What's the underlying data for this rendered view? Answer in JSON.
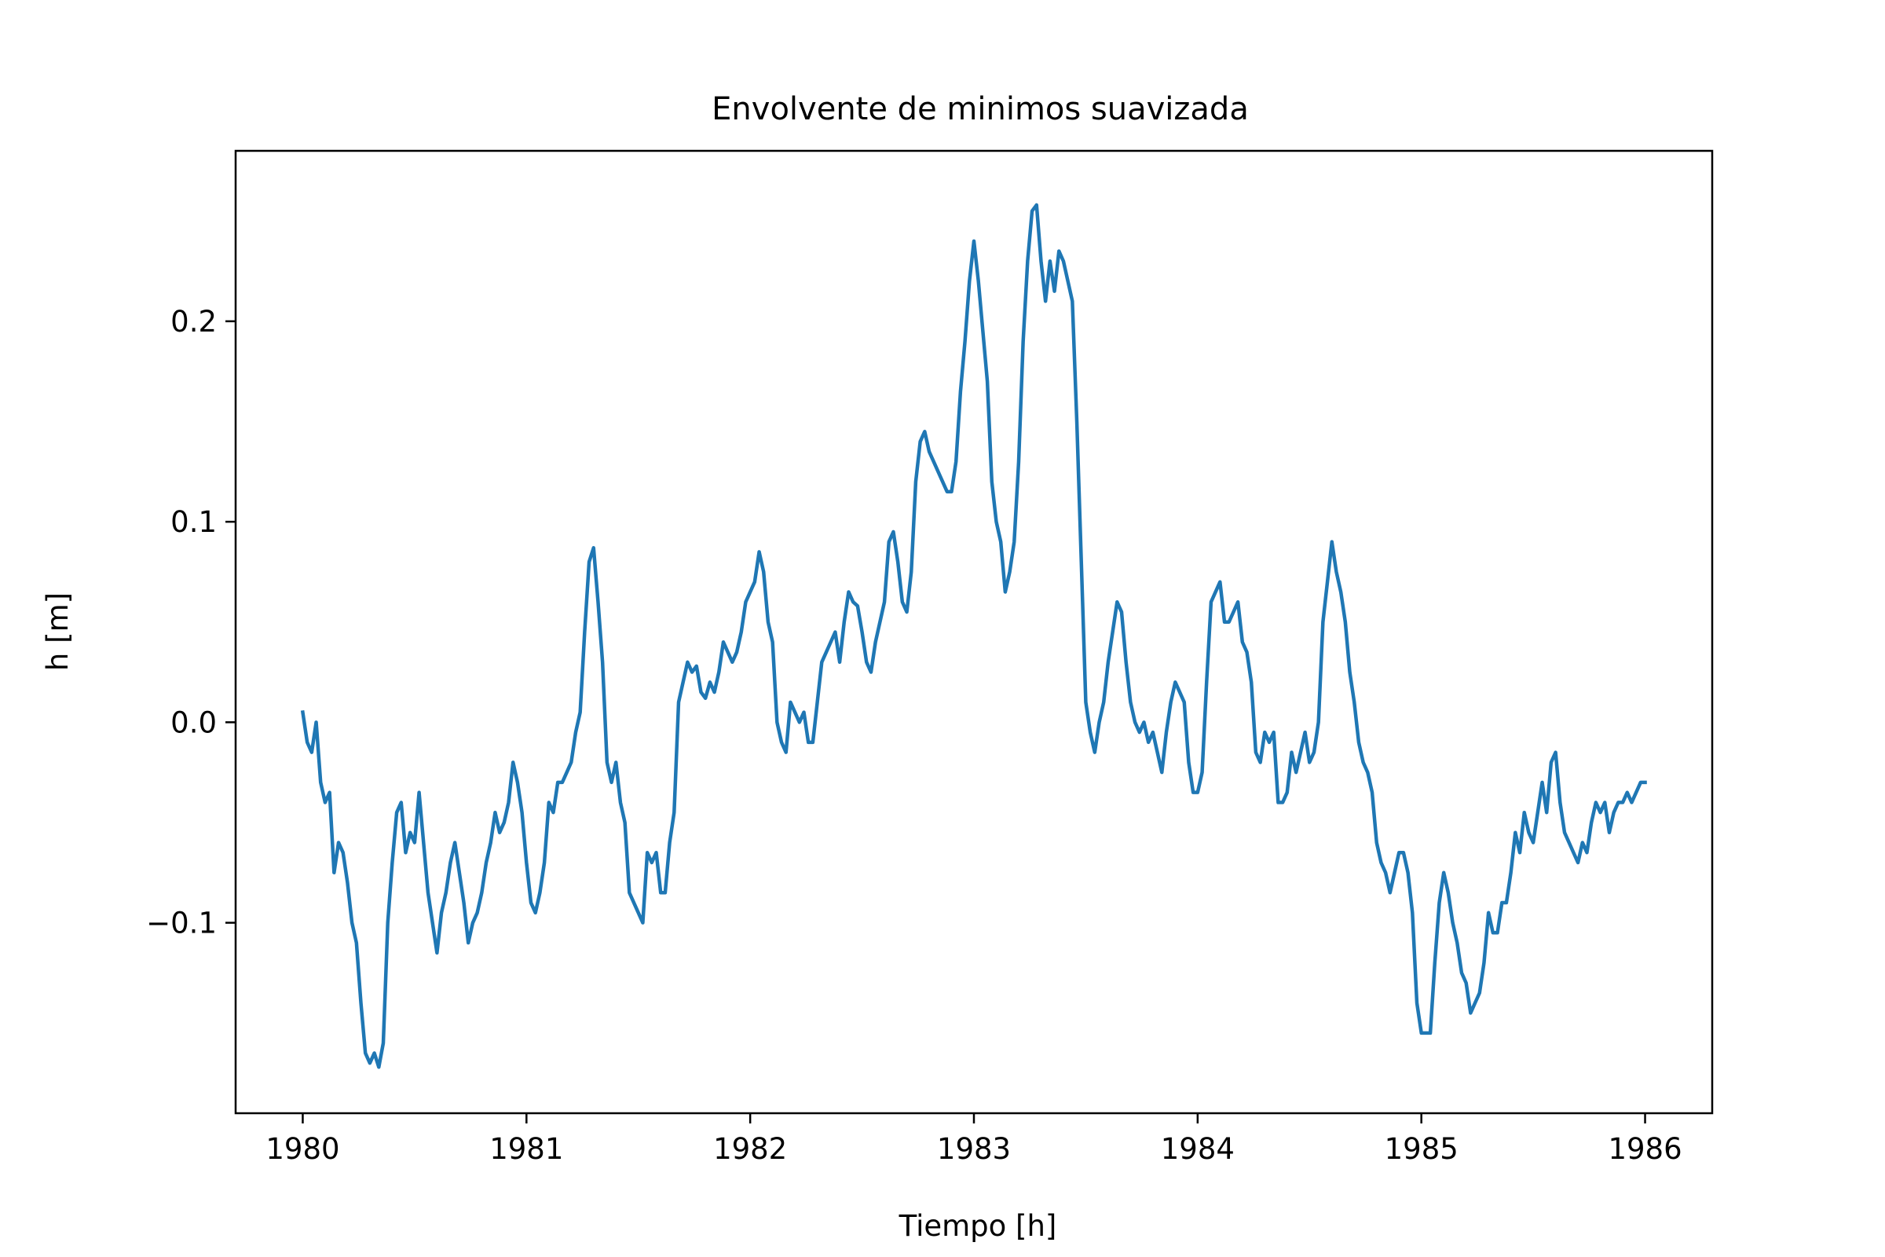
{
  "chart_data": {
    "type": "line",
    "title": "Envolvente de minimos suavizada",
    "xlabel": "Tiempo [h]",
    "ylabel": "h [m]",
    "xlim": [
      1979.7,
      1986.3
    ],
    "ylim": [
      -0.195,
      0.285
    ],
    "xticks": [
      1980,
      1981,
      1982,
      1983,
      1984,
      1985,
      1986
    ],
    "xtick_labels": [
      "1980",
      "1981",
      "1982",
      "1983",
      "1984",
      "1985",
      "1986"
    ],
    "yticks": [
      -0.1,
      0.0,
      0.1,
      0.2
    ],
    "ytick_labels": [
      "−0.1",
      "0.0",
      "0.1",
      "0.2"
    ],
    "grid": false,
    "line_color": "#1f77b4",
    "series": [
      {
        "points": [
          [
            1980.0,
            0.005
          ],
          [
            1980.02,
            -0.01
          ],
          [
            1980.04,
            -0.015
          ],
          [
            1980.06,
            0.0
          ],
          [
            1980.08,
            -0.03
          ],
          [
            1980.1,
            -0.04
          ],
          [
            1980.12,
            -0.035
          ],
          [
            1980.14,
            -0.075
          ],
          [
            1980.16,
            -0.06
          ],
          [
            1980.18,
            -0.065
          ],
          [
            1980.2,
            -0.08
          ],
          [
            1980.22,
            -0.1
          ],
          [
            1980.24,
            -0.11
          ],
          [
            1980.26,
            -0.14
          ],
          [
            1980.28,
            -0.165
          ],
          [
            1980.3,
            -0.17
          ],
          [
            1980.32,
            -0.165
          ],
          [
            1980.34,
            -0.172
          ],
          [
            1980.36,
            -0.16
          ],
          [
            1980.38,
            -0.1
          ],
          [
            1980.4,
            -0.07
          ],
          [
            1980.42,
            -0.045
          ],
          [
            1980.44,
            -0.04
          ],
          [
            1980.46,
            -0.065
          ],
          [
            1980.48,
            -0.055
          ],
          [
            1980.5,
            -0.06
          ],
          [
            1980.52,
            -0.035
          ],
          [
            1980.54,
            -0.06
          ],
          [
            1980.56,
            -0.085
          ],
          [
            1980.58,
            -0.1
          ],
          [
            1980.6,
            -0.115
          ],
          [
            1980.62,
            -0.095
          ],
          [
            1980.64,
            -0.085
          ],
          [
            1980.66,
            -0.07
          ],
          [
            1980.68,
            -0.06
          ],
          [
            1980.7,
            -0.075
          ],
          [
            1980.72,
            -0.09
          ],
          [
            1980.74,
            -0.11
          ],
          [
            1980.76,
            -0.1
          ],
          [
            1980.78,
            -0.095
          ],
          [
            1980.8,
            -0.085
          ],
          [
            1980.82,
            -0.07
          ],
          [
            1980.84,
            -0.06
          ],
          [
            1980.86,
            -0.045
          ],
          [
            1980.88,
            -0.055
          ],
          [
            1980.9,
            -0.05
          ],
          [
            1980.92,
            -0.04
          ],
          [
            1980.94,
            -0.02
          ],
          [
            1980.96,
            -0.03
          ],
          [
            1980.98,
            -0.045
          ],
          [
            1981.0,
            -0.07
          ],
          [
            1981.02,
            -0.09
          ],
          [
            1981.04,
            -0.095
          ],
          [
            1981.06,
            -0.085
          ],
          [
            1981.08,
            -0.07
          ],
          [
            1981.1,
            -0.04
          ],
          [
            1981.12,
            -0.045
          ],
          [
            1981.14,
            -0.03
          ],
          [
            1981.16,
            -0.03
          ],
          [
            1981.18,
            -0.025
          ],
          [
            1981.2,
            -0.02
          ],
          [
            1981.22,
            -0.005
          ],
          [
            1981.24,
            0.005
          ],
          [
            1981.26,
            0.045
          ],
          [
            1981.28,
            0.08
          ],
          [
            1981.3,
            0.087
          ],
          [
            1981.32,
            0.06
          ],
          [
            1981.34,
            0.03
          ],
          [
            1981.36,
            -0.02
          ],
          [
            1981.38,
            -0.03
          ],
          [
            1981.4,
            -0.02
          ],
          [
            1981.42,
            -0.04
          ],
          [
            1981.44,
            -0.05
          ],
          [
            1981.46,
            -0.085
          ],
          [
            1981.48,
            -0.09
          ],
          [
            1981.5,
            -0.095
          ],
          [
            1981.52,
            -0.1
          ],
          [
            1981.54,
            -0.065
          ],
          [
            1981.56,
            -0.07
          ],
          [
            1981.58,
            -0.065
          ],
          [
            1981.6,
            -0.085
          ],
          [
            1981.62,
            -0.085
          ],
          [
            1981.64,
            -0.06
          ],
          [
            1981.66,
            -0.045
          ],
          [
            1981.68,
            0.01
          ],
          [
            1981.7,
            0.02
          ],
          [
            1981.72,
            0.03
          ],
          [
            1981.74,
            0.025
          ],
          [
            1981.76,
            0.028
          ],
          [
            1981.78,
            0.015
          ],
          [
            1981.8,
            0.012
          ],
          [
            1981.82,
            0.02
          ],
          [
            1981.84,
            0.015
          ],
          [
            1981.86,
            0.025
          ],
          [
            1981.88,
            0.04
          ],
          [
            1981.9,
            0.035
          ],
          [
            1981.92,
            0.03
          ],
          [
            1981.94,
            0.035
          ],
          [
            1981.96,
            0.045
          ],
          [
            1981.98,
            0.06
          ],
          [
            1982.0,
            0.065
          ],
          [
            1982.02,
            0.07
          ],
          [
            1982.04,
            0.085
          ],
          [
            1982.06,
            0.075
          ],
          [
            1982.08,
            0.05
          ],
          [
            1982.1,
            0.04
          ],
          [
            1982.12,
            0.0
          ],
          [
            1982.14,
            -0.01
          ],
          [
            1982.16,
            -0.015
          ],
          [
            1982.18,
            0.01
          ],
          [
            1982.2,
            0.005
          ],
          [
            1982.22,
            0.0
          ],
          [
            1982.24,
            0.005
          ],
          [
            1982.26,
            -0.01
          ],
          [
            1982.28,
            -0.01
          ],
          [
            1982.3,
            0.01
          ],
          [
            1982.32,
            0.03
          ],
          [
            1982.34,
            0.035
          ],
          [
            1982.36,
            0.04
          ],
          [
            1982.38,
            0.045
          ],
          [
            1982.4,
            0.03
          ],
          [
            1982.42,
            0.05
          ],
          [
            1982.44,
            0.065
          ],
          [
            1982.46,
            0.06
          ],
          [
            1982.48,
            0.058
          ],
          [
            1982.5,
            0.045
          ],
          [
            1982.52,
            0.03
          ],
          [
            1982.54,
            0.025
          ],
          [
            1982.56,
            0.04
          ],
          [
            1982.58,
            0.05
          ],
          [
            1982.6,
            0.06
          ],
          [
            1982.62,
            0.09
          ],
          [
            1982.64,
            0.095
          ],
          [
            1982.66,
            0.08
          ],
          [
            1982.68,
            0.06
          ],
          [
            1982.7,
            0.055
          ],
          [
            1982.72,
            0.075
          ],
          [
            1982.74,
            0.12
          ],
          [
            1982.76,
            0.14
          ],
          [
            1982.78,
            0.145
          ],
          [
            1982.8,
            0.135
          ],
          [
            1982.82,
            0.13
          ],
          [
            1982.84,
            0.125
          ],
          [
            1982.86,
            0.12
          ],
          [
            1982.88,
            0.115
          ],
          [
            1982.9,
            0.115
          ],
          [
            1982.92,
            0.13
          ],
          [
            1982.94,
            0.165
          ],
          [
            1982.96,
            0.19
          ],
          [
            1982.98,
            0.22
          ],
          [
            1983.0,
            0.24
          ],
          [
            1983.02,
            0.22
          ],
          [
            1983.04,
            0.195
          ],
          [
            1983.06,
            0.17
          ],
          [
            1983.08,
            0.12
          ],
          [
            1983.1,
            0.1
          ],
          [
            1983.12,
            0.09
          ],
          [
            1983.14,
            0.065
          ],
          [
            1983.16,
            0.075
          ],
          [
            1983.18,
            0.09
          ],
          [
            1983.2,
            0.13
          ],
          [
            1983.22,
            0.19
          ],
          [
            1983.24,
            0.23
          ],
          [
            1983.26,
            0.255
          ],
          [
            1983.28,
            0.258
          ],
          [
            1983.3,
            0.23
          ],
          [
            1983.32,
            0.21
          ],
          [
            1983.34,
            0.23
          ],
          [
            1983.36,
            0.215
          ],
          [
            1983.38,
            0.235
          ],
          [
            1983.4,
            0.23
          ],
          [
            1983.42,
            0.22
          ],
          [
            1983.44,
            0.21
          ],
          [
            1983.46,
            0.15
          ],
          [
            1983.48,
            0.08
          ],
          [
            1983.5,
            0.01
          ],
          [
            1983.52,
            -0.005
          ],
          [
            1983.54,
            -0.015
          ],
          [
            1983.56,
            0.0
          ],
          [
            1983.58,
            0.01
          ],
          [
            1983.6,
            0.03
          ],
          [
            1983.62,
            0.045
          ],
          [
            1983.64,
            0.06
          ],
          [
            1983.66,
            0.055
          ],
          [
            1983.68,
            0.03
          ],
          [
            1983.7,
            0.01
          ],
          [
            1983.72,
            0.0
          ],
          [
            1983.74,
            -0.005
          ],
          [
            1983.76,
            0.0
          ],
          [
            1983.78,
            -0.01
          ],
          [
            1983.8,
            -0.005
          ],
          [
            1983.82,
            -0.015
          ],
          [
            1983.84,
            -0.025
          ],
          [
            1983.86,
            -0.005
          ],
          [
            1983.88,
            0.01
          ],
          [
            1983.9,
            0.02
          ],
          [
            1983.92,
            0.015
          ],
          [
            1983.94,
            0.01
          ],
          [
            1983.96,
            -0.02
          ],
          [
            1983.98,
            -0.035
          ],
          [
            1984.0,
            -0.035
          ],
          [
            1984.02,
            -0.025
          ],
          [
            1984.04,
            0.02
          ],
          [
            1984.06,
            0.06
          ],
          [
            1984.08,
            0.065
          ],
          [
            1984.1,
            0.07
          ],
          [
            1984.12,
            0.05
          ],
          [
            1984.14,
            0.05
          ],
          [
            1984.16,
            0.055
          ],
          [
            1984.18,
            0.06
          ],
          [
            1984.2,
            0.04
          ],
          [
            1984.22,
            0.035
          ],
          [
            1984.24,
            0.02
          ],
          [
            1984.26,
            -0.015
          ],
          [
            1984.28,
            -0.02
          ],
          [
            1984.3,
            -0.005
          ],
          [
            1984.32,
            -0.01
          ],
          [
            1984.34,
            -0.005
          ],
          [
            1984.36,
            -0.04
          ],
          [
            1984.38,
            -0.04
          ],
          [
            1984.4,
            -0.035
          ],
          [
            1984.42,
            -0.015
          ],
          [
            1984.44,
            -0.025
          ],
          [
            1984.46,
            -0.015
          ],
          [
            1984.48,
            -0.005
          ],
          [
            1984.5,
            -0.02
          ],
          [
            1984.52,
            -0.015
          ],
          [
            1984.54,
            0.0
          ],
          [
            1984.56,
            0.05
          ],
          [
            1984.58,
            0.07
          ],
          [
            1984.6,
            0.09
          ],
          [
            1984.62,
            0.075
          ],
          [
            1984.64,
            0.065
          ],
          [
            1984.66,
            0.05
          ],
          [
            1984.68,
            0.025
          ],
          [
            1984.7,
            0.01
          ],
          [
            1984.72,
            -0.01
          ],
          [
            1984.74,
            -0.02
          ],
          [
            1984.76,
            -0.025
          ],
          [
            1984.78,
            -0.035
          ],
          [
            1984.8,
            -0.06
          ],
          [
            1984.82,
            -0.07
          ],
          [
            1984.84,
            -0.075
          ],
          [
            1984.86,
            -0.085
          ],
          [
            1984.88,
            -0.075
          ],
          [
            1984.9,
            -0.065
          ],
          [
            1984.92,
            -0.065
          ],
          [
            1984.94,
            -0.075
          ],
          [
            1984.96,
            -0.095
          ],
          [
            1984.98,
            -0.14
          ],
          [
            1985.0,
            -0.155
          ],
          [
            1985.02,
            -0.155
          ],
          [
            1985.04,
            -0.155
          ],
          [
            1985.06,
            -0.12
          ],
          [
            1985.08,
            -0.09
          ],
          [
            1985.1,
            -0.075
          ],
          [
            1985.12,
            -0.085
          ],
          [
            1985.14,
            -0.1
          ],
          [
            1985.16,
            -0.11
          ],
          [
            1985.18,
            -0.125
          ],
          [
            1985.2,
            -0.13
          ],
          [
            1985.22,
            -0.145
          ],
          [
            1985.24,
            -0.14
          ],
          [
            1985.26,
            -0.135
          ],
          [
            1985.28,
            -0.12
          ],
          [
            1985.3,
            -0.095
          ],
          [
            1985.32,
            -0.105
          ],
          [
            1985.34,
            -0.105
          ],
          [
            1985.36,
            -0.09
          ],
          [
            1985.38,
            -0.09
          ],
          [
            1985.4,
            -0.075
          ],
          [
            1985.42,
            -0.055
          ],
          [
            1985.44,
            -0.065
          ],
          [
            1985.46,
            -0.045
          ],
          [
            1985.48,
            -0.055
          ],
          [
            1985.5,
            -0.06
          ],
          [
            1985.52,
            -0.045
          ],
          [
            1985.54,
            -0.03
          ],
          [
            1985.56,
            -0.045
          ],
          [
            1985.58,
            -0.02
          ],
          [
            1985.6,
            -0.015
          ],
          [
            1985.62,
            -0.04
          ],
          [
            1985.64,
            -0.055
          ],
          [
            1985.66,
            -0.06
          ],
          [
            1985.68,
            -0.065
          ],
          [
            1985.7,
            -0.07
          ],
          [
            1985.72,
            -0.06
          ],
          [
            1985.74,
            -0.065
          ],
          [
            1985.76,
            -0.05
          ],
          [
            1985.78,
            -0.04
          ],
          [
            1985.8,
            -0.045
          ],
          [
            1985.82,
            -0.04
          ],
          [
            1985.84,
            -0.055
          ],
          [
            1985.86,
            -0.045
          ],
          [
            1985.88,
            -0.04
          ],
          [
            1985.9,
            -0.04
          ],
          [
            1985.92,
            -0.035
          ],
          [
            1985.94,
            -0.04
          ],
          [
            1985.96,
            -0.035
          ],
          [
            1985.98,
            -0.03
          ],
          [
            1986.0,
            -0.03
          ]
        ]
      }
    ]
  }
}
